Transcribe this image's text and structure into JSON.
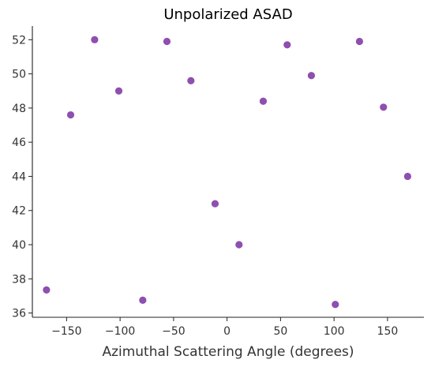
{
  "chart_data": {
    "type": "scatter",
    "title": "Unpolarized ASAD",
    "xlabel": "Azimuthal Scattering Angle (degrees)",
    "ylabel": "",
    "xlim": [
      -182,
      184
    ],
    "ylim": [
      35.75,
      52.8
    ],
    "xticks": [
      -150,
      -100,
      -50,
      0,
      50,
      100,
      150
    ],
    "yticks": [
      36,
      38,
      40,
      42,
      44,
      46,
      48,
      50,
      52
    ],
    "grid": false,
    "marker_color": "#8e4fb0",
    "points": [
      {
        "x": -168.8,
        "y": 37.35
      },
      {
        "x": -146.2,
        "y": 47.6
      },
      {
        "x": -123.8,
        "y": 52.0
      },
      {
        "x": -101.2,
        "y": 49.0
      },
      {
        "x": -78.8,
        "y": 36.75
      },
      {
        "x": -56.2,
        "y": 51.9
      },
      {
        "x": -33.8,
        "y": 49.6
      },
      {
        "x": -11.2,
        "y": 42.4
      },
      {
        "x": 11.2,
        "y": 40.0
      },
      {
        "x": 33.8,
        "y": 48.4
      },
      {
        "x": 56.2,
        "y": 51.7
      },
      {
        "x": 78.8,
        "y": 49.9
      },
      {
        "x": 101.2,
        "y": 36.5
      },
      {
        "x": 123.8,
        "y": 51.9
      },
      {
        "x": 146.2,
        "y": 48.05
      },
      {
        "x": 168.8,
        "y": 44.0
      }
    ]
  }
}
